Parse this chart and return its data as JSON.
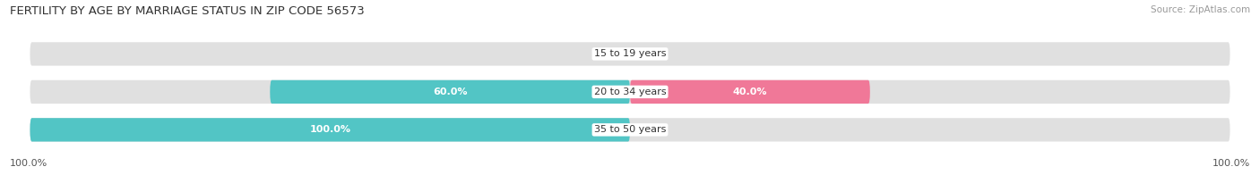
{
  "title": "FERTILITY BY AGE BY MARRIAGE STATUS IN ZIP CODE 56573",
  "source": "Source: ZipAtlas.com",
  "categories": [
    "35 to 50 years",
    "20 to 34 years",
    "15 to 19 years"
  ],
  "married": [
    100.0,
    60.0,
    0.0
  ],
  "unmarried": [
    0.0,
    40.0,
    0.0
  ],
  "married_color": "#52c5c5",
  "unmarried_color": "#f07898",
  "bar_bg_color": "#e0e0e0",
  "bar_height": 0.62,
  "title_fontsize": 9.5,
  "label_fontsize": 8.0,
  "category_fontsize": 8.0,
  "legend_fontsize": 8.5,
  "fig_bg_color": "#ffffff",
  "axis_label_left": "100.0%",
  "axis_label_right": "100.0%"
}
